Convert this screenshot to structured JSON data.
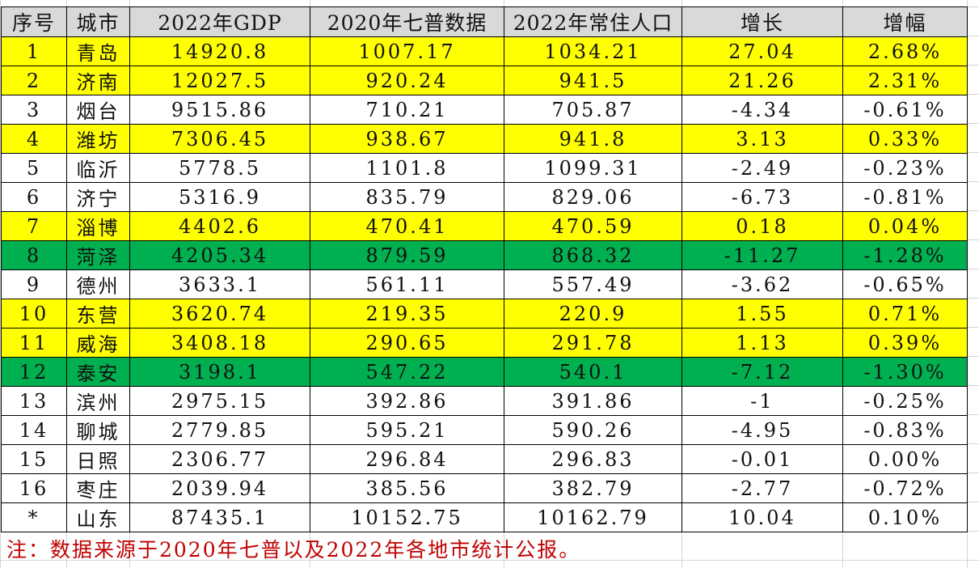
{
  "colors": {
    "header_bg": "#d9d9d9",
    "yellow_highlight": "#ffff00",
    "green_highlight": "#00b050",
    "note_text": "#c00000",
    "grid": "#d4d4d4"
  },
  "table": {
    "headers": [
      "序号",
      "城市",
      "2022年GDP",
      "2020年七普数据",
      "2022年常住人口",
      "增长",
      "增幅"
    ],
    "rows": [
      {
        "no": "1",
        "city": "青岛",
        "gdp": "14920.8",
        "pop2020": "1007.17",
        "pop2022": "1034.21",
        "growth": "27.04",
        "rate": "2.68%",
        "highlight": "yellow"
      },
      {
        "no": "2",
        "city": "济南",
        "gdp": "12027.5",
        "pop2020": "920.24",
        "pop2022": "941.5",
        "growth": "21.26",
        "rate": "2.31%",
        "highlight": "yellow"
      },
      {
        "no": "3",
        "city": "烟台",
        "gdp": "9515.86",
        "pop2020": "710.21",
        "pop2022": "705.87",
        "growth": "-4.34",
        "rate": "-0.61%",
        "highlight": "white"
      },
      {
        "no": "4",
        "city": "潍坊",
        "gdp": "7306.45",
        "pop2020": "938.67",
        "pop2022": "941.8",
        "growth": "3.13",
        "rate": "0.33%",
        "highlight": "yellow"
      },
      {
        "no": "5",
        "city": "临沂",
        "gdp": "5778.5",
        "pop2020": "1101.8",
        "pop2022": "1099.31",
        "growth": "-2.49",
        "rate": "-0.23%",
        "highlight": "white"
      },
      {
        "no": "6",
        "city": "济宁",
        "gdp": "5316.9",
        "pop2020": "835.79",
        "pop2022": "829.06",
        "growth": "-6.73",
        "rate": "-0.81%",
        "highlight": "white"
      },
      {
        "no": "7",
        "city": "淄博",
        "gdp": "4402.6",
        "pop2020": "470.41",
        "pop2022": "470.59",
        "growth": "0.18",
        "rate": "0.04%",
        "highlight": "yellow"
      },
      {
        "no": "8",
        "city": "菏泽",
        "gdp": "4205.34",
        "pop2020": "879.59",
        "pop2022": "868.32",
        "growth": "-11.27",
        "rate": "-1.28%",
        "highlight": "green"
      },
      {
        "no": "9",
        "city": "德州",
        "gdp": "3633.1",
        "pop2020": "561.11",
        "pop2022": "557.49",
        "growth": "-3.62",
        "rate": "-0.65%",
        "highlight": "white"
      },
      {
        "no": "10",
        "city": "东营",
        "gdp": "3620.74",
        "pop2020": "219.35",
        "pop2022": "220.9",
        "growth": "1.55",
        "rate": "0.71%",
        "highlight": "yellow"
      },
      {
        "no": "11",
        "city": "威海",
        "gdp": "3408.18",
        "pop2020": "290.65",
        "pop2022": "291.78",
        "growth": "1.13",
        "rate": "0.39%",
        "highlight": "yellow"
      },
      {
        "no": "12",
        "city": "泰安",
        "gdp": "3198.1",
        "pop2020": "547.22",
        "pop2022": "540.1",
        "growth": "-7.12",
        "rate": "-1.30%",
        "highlight": "green"
      },
      {
        "no": "13",
        "city": "滨州",
        "gdp": "2975.15",
        "pop2020": "392.86",
        "pop2022": "391.86",
        "growth": "-1",
        "rate": "-0.25%",
        "highlight": "white"
      },
      {
        "no": "14",
        "city": "聊城",
        "gdp": "2779.85",
        "pop2020": "595.21",
        "pop2022": "590.26",
        "growth": "-4.95",
        "rate": "-0.83%",
        "highlight": "white"
      },
      {
        "no": "15",
        "city": "日照",
        "gdp": "2306.77",
        "pop2020": "296.84",
        "pop2022": "296.83",
        "growth": "-0.01",
        "rate": "0.00%",
        "highlight": "white"
      },
      {
        "no": "16",
        "city": "枣庄",
        "gdp": "2039.94",
        "pop2020": "385.56",
        "pop2022": "382.79",
        "growth": "-2.77",
        "rate": "-0.72%",
        "highlight": "white"
      },
      {
        "no": "*",
        "city": "山东",
        "gdp": "87435.1",
        "pop2020": "10152.75",
        "pop2022": "10162.79",
        "growth": "10.04",
        "rate": "0.10%",
        "highlight": "white"
      }
    ]
  },
  "note": "注：数据来源于2020年七普以及2022年各地市统计公报。"
}
